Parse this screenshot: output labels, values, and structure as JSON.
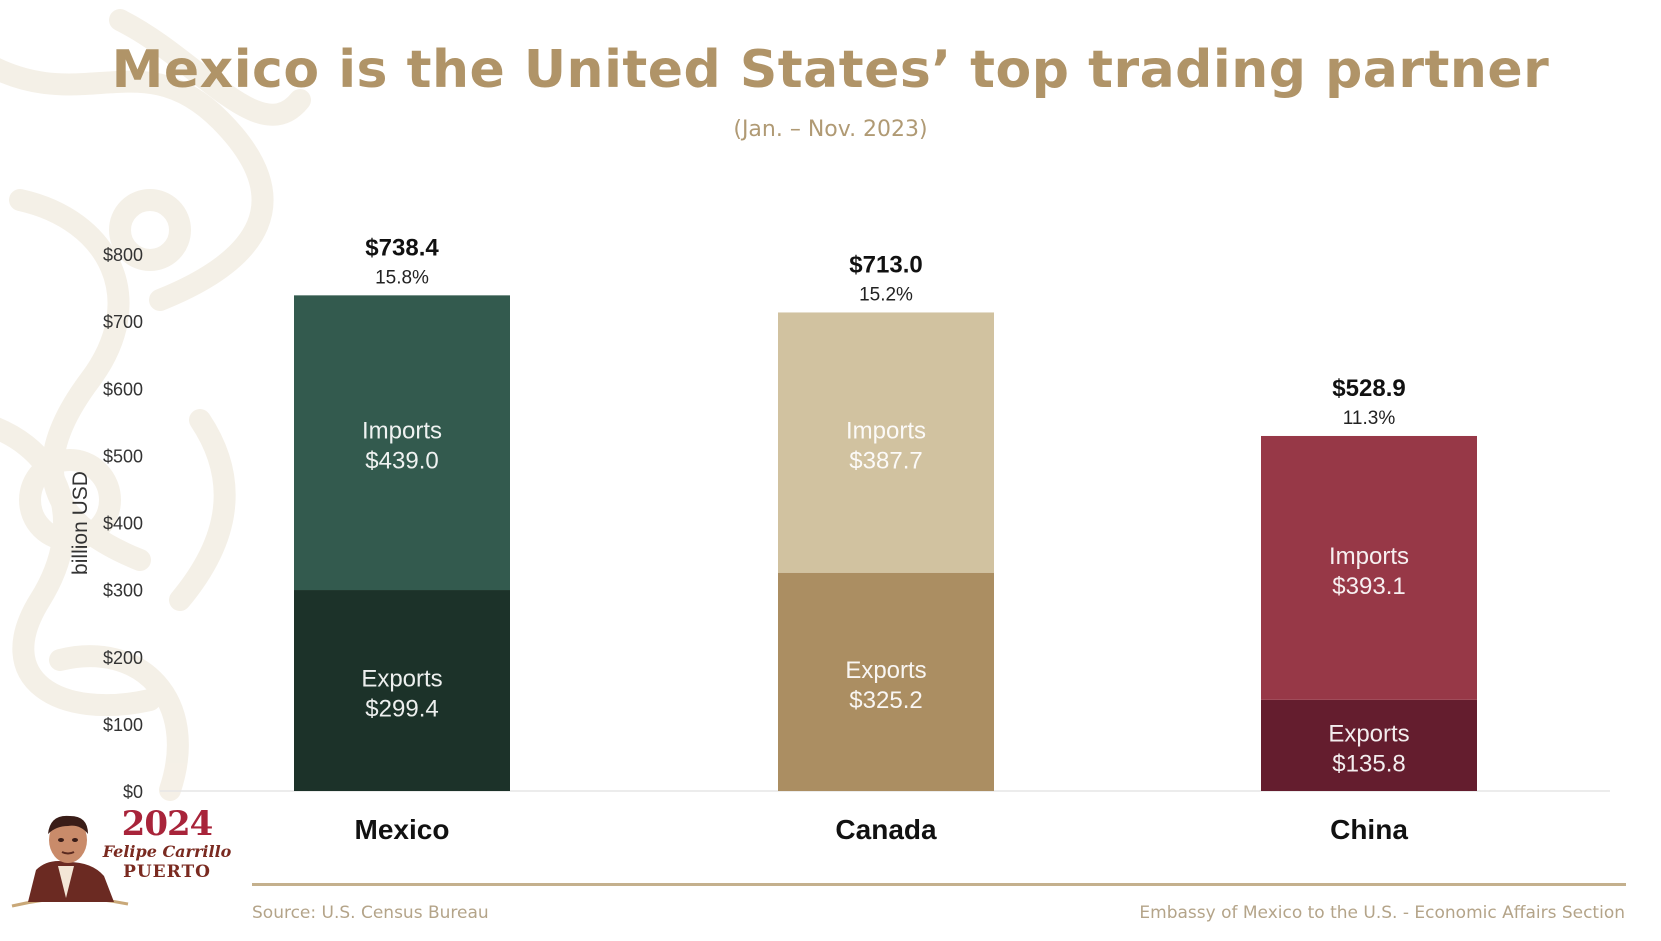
{
  "title": "Mexico is the United States’ top trading partner",
  "subtitle": "(Jan. – Nov. 2023)",
  "colors": {
    "title": "#b09468",
    "axis_text": "#333333",
    "footer_rule": "#c4b08d"
  },
  "footer": {
    "source": "Source: U.S. Census Bureau",
    "credit": "Embassy of Mexico to the U.S. - Economic Affairs Section"
  },
  "logo": {
    "year": "2024",
    "name": "Felipe Carrillo",
    "surname": "PUERTO",
    "icon": "portrait-seal-icon"
  },
  "chart_data": {
    "type": "bar",
    "stacked": true,
    "ylabel": "billion USD",
    "ylim": [
      0,
      800
    ],
    "yticks": [
      0,
      100,
      200,
      300,
      400,
      500,
      600,
      700,
      800
    ],
    "ytick_labels": [
      "$0",
      "$100",
      "$200",
      "$300",
      "$400",
      "$500",
      "$600",
      "$700",
      "$800"
    ],
    "grid": false,
    "categories": [
      "Mexico",
      "Canada",
      "China"
    ],
    "totals": [
      738.4,
      713.0,
      528.9
    ],
    "total_labels": [
      "$738.4",
      "$713.0",
      "$528.9"
    ],
    "share_labels": [
      "15.8%",
      "15.2%",
      "11.3%"
    ],
    "series": [
      {
        "name": "Exports",
        "values": [
          299.4,
          325.2,
          135.8
        ],
        "value_labels": [
          "$299.4",
          "$325.2",
          "$135.8"
        ],
        "colors": [
          "#1c3229",
          "#ab8e62",
          "#641d2e"
        ]
      },
      {
        "name": "Imports",
        "values": [
          439.0,
          387.7,
          393.1
        ],
        "value_labels": [
          "$439.0",
          "$387.7",
          "$393.1"
        ],
        "colors": [
          "#335a4e",
          "#d1c2a0",
          "#973847"
        ]
      }
    ]
  }
}
